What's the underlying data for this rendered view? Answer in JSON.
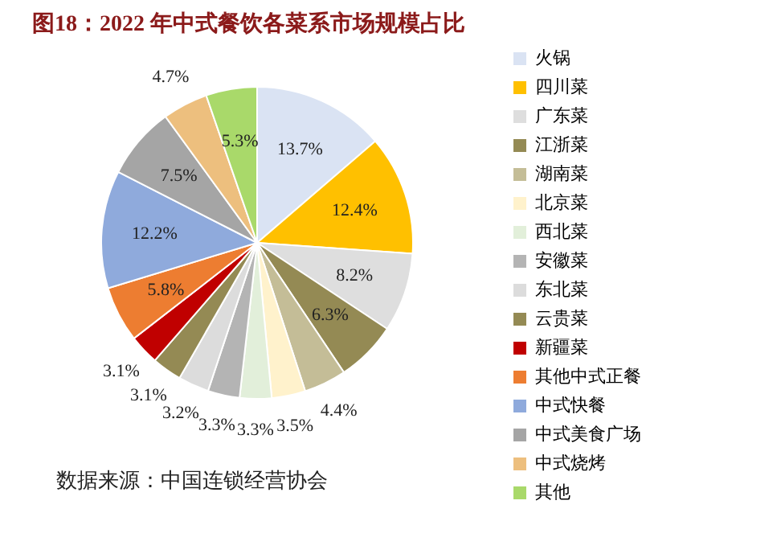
{
  "chart_data": {
    "type": "pie",
    "title": "图18：2022 年中式餐饮各菜系市场规模占比",
    "categories": [
      "火锅",
      "四川菜",
      "广东菜",
      "江浙菜",
      "湖南菜",
      "北京菜",
      "西北菜",
      "安徽菜",
      "东北菜",
      "云贵菜",
      "新疆菜",
      "其他中式正餐",
      "中式快餐",
      "中式美食广场",
      "中式烧烤",
      "其他"
    ],
    "values": [
      13.7,
      12.4,
      8.2,
      6.3,
      4.4,
      3.5,
      3.3,
      3.3,
      3.2,
      3.1,
      3.1,
      5.8,
      12.2,
      7.5,
      4.7,
      5.3
    ],
    "colors": [
      "#dae3f3",
      "#ffc000",
      "#dedede",
      "#948a54",
      "#c4bd97",
      "#fff2cc",
      "#e2efda",
      "#b4b4b4",
      "#dcdcdc",
      "#948a54",
      "#c00000",
      "#ed7d31",
      "#8faadc",
      "#a5a5a5",
      "#edbf7e",
      "#a9d96a"
    ],
    "value_labels": [
      "13.7%",
      "12.4%",
      "8.2%",
      "6.3%",
      "4.4%",
      "3.5%",
      "3.3%",
      "3.3%",
      "3.2%",
      "3.1%",
      "3.1%",
      "5.8%",
      "12.2%",
      "7.5%",
      "4.7%",
      "5.3%"
    ],
    "legend": "right",
    "annotations": [
      "数据来源：中国连锁经营协会"
    ]
  }
}
